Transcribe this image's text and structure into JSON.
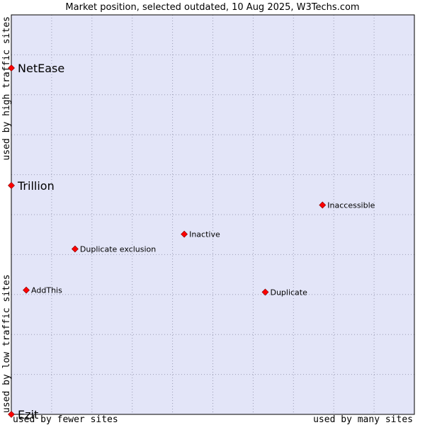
{
  "chart_data": {
    "type": "scatter",
    "title": "Market position, selected outdated, 10 Aug 2025, W3Techs.com",
    "xlabel_left": "used by fewer sites",
    "xlabel_right": "used by many sites",
    "ylabel_bottom": "used by low traffic sites",
    "ylabel_top": "used by high traffic sites",
    "xlim": [
      0,
      100
    ],
    "ylim": [
      0,
      100
    ],
    "grid": true,
    "point_color": "#ff0000",
    "background_color": "#e3e5f8",
    "points": [
      {
        "label": "NetEase",
        "x": 0,
        "y": 86.7,
        "size": "large"
      },
      {
        "label": "Trillion",
        "x": 0,
        "y": 57.3,
        "size": "large"
      },
      {
        "label": "Ezit",
        "x": 0,
        "y": 0,
        "size": "large"
      },
      {
        "label": "Inaccessible",
        "x": 77.2,
        "y": 52.4,
        "size": "small"
      },
      {
        "label": "Inactive",
        "x": 42.9,
        "y": 45.1,
        "size": "small"
      },
      {
        "label": "Duplicate exclusion",
        "x": 15.8,
        "y": 41.4,
        "size": "small"
      },
      {
        "label": "AddThis",
        "x": 3.7,
        "y": 31.1,
        "size": "small"
      },
      {
        "label": "Duplicate",
        "x": 63.0,
        "y": 30.6,
        "size": "small"
      }
    ]
  }
}
